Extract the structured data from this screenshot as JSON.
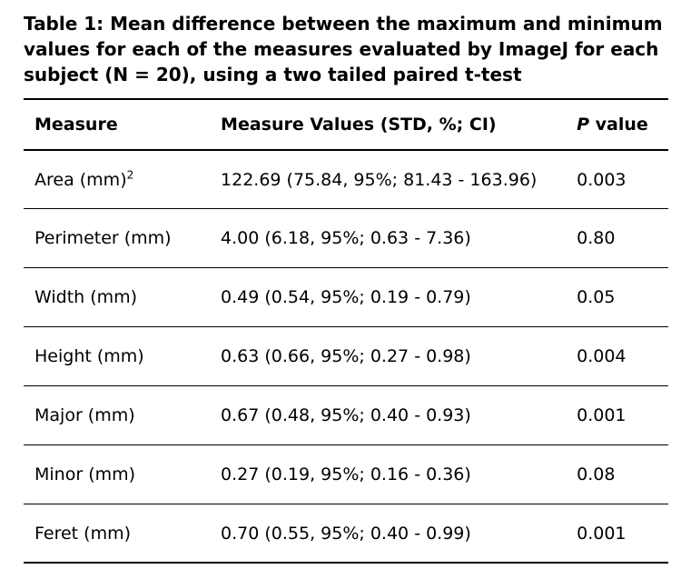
{
  "caption": "Table 1: Mean difference between the maximum and minimum values for each of the measures evaluated by ImageJ for each subject (N = 20), using a two tailed paired t-test",
  "table": {
    "headers": {
      "measure": "Measure",
      "values": "Measure Values (STD, %; CI)",
      "p_italic": "P",
      "p_rest": " value"
    },
    "rows": [
      {
        "measure": "Area (mm)",
        "sup": "2",
        "values": "122.69 (75.84, 95%; 81.43 - 163.96)",
        "p": "0.003"
      },
      {
        "measure": "Perimeter (mm)",
        "values": "4.00 (6.18, 95%; 0.63 - 7.36)",
        "p": "0.80"
      },
      {
        "measure": "Width (mm)",
        "values": "0.49 (0.54, 95%; 0.19 - 0.79)",
        "p": "0.05"
      },
      {
        "measure": "Height (mm)",
        "values": "0.63 (0.66, 95%; 0.27 - 0.98)",
        "p": "0.004"
      },
      {
        "measure": "Major (mm)",
        "values": "0.67 (0.48, 95%; 0.40 - 0.93)",
        "p": "0.001"
      },
      {
        "measure": "Minor (mm)",
        "values": "0.27 (0.19, 95%; 0.16 - 0.36)",
        "p": "0.08"
      },
      {
        "measure": "Feret (mm)",
        "values": "0.70 (0.55, 95%; 0.40 - 0.99)",
        "p": "0.001"
      }
    ]
  }
}
